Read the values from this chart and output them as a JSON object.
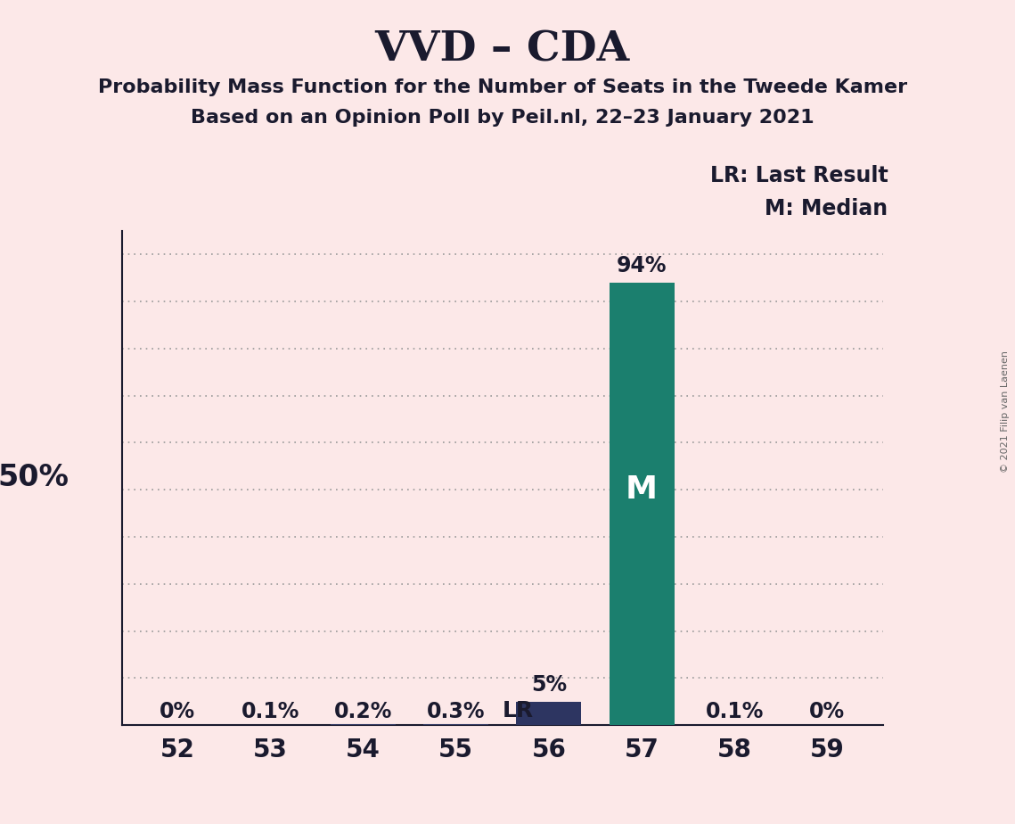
{
  "title": "VVD – CDA",
  "subtitle1": "Probability Mass Function for the Number of Seats in the Tweede Kamer",
  "subtitle2": "Based on an Opinion Poll by Peil.nl, 22–23 January 2021",
  "copyright": "© 2021 Filip van Laenen",
  "categories": [
    52,
    53,
    54,
    55,
    56,
    57,
    58,
    59
  ],
  "values": [
    0.0,
    0.001,
    0.002,
    0.003,
    0.05,
    0.94,
    0.001,
    0.0
  ],
  "bar_labels": [
    "0%",
    "0.1%",
    "0.2%",
    "0.3%",
    "5%",
    "94%",
    "0.1%",
    "0%"
  ],
  "bar_colors": [
    "#2d3561",
    "#2d3561",
    "#2d3561",
    "#2d3561",
    "#2d3561",
    "#1b7f6e",
    "#1b7f6e",
    "#1b7f6e"
  ],
  "median_bar_index": 5,
  "lr_bar_index": 4,
  "lr_label": "LR",
  "median_label": "M",
  "legend_lr": "LR: Last Result",
  "legend_m": "M: Median",
  "background_color": "#fce8e8",
  "bar_width": 0.7,
  "ylim": [
    0,
    1.05
  ],
  "ytick_positions": [
    0.0,
    0.1,
    0.2,
    0.3,
    0.4,
    0.5,
    0.6,
    0.7,
    0.8,
    0.9,
    1.0
  ],
  "title_fontsize": 34,
  "subtitle_fontsize": 16,
  "xtick_fontsize": 20,
  "bar_label_fontsize": 17,
  "legend_fontsize": 17,
  "lr_label_fontsize": 18,
  "median_in_bar_fontsize": 26,
  "ylabel_50_fontsize": 24
}
